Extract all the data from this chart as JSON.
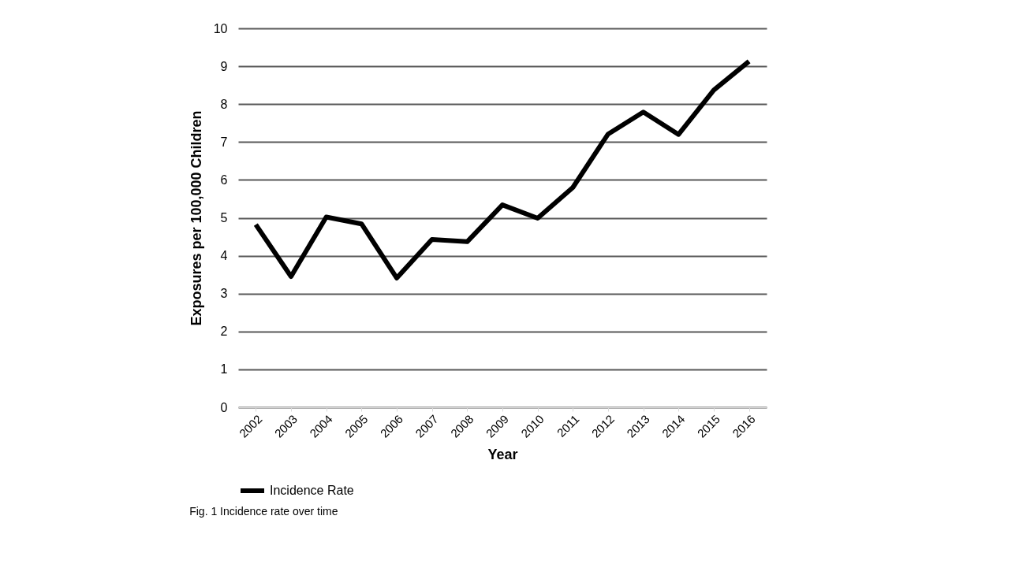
{
  "chart_data": {
    "type": "line",
    "xlabel": "Year",
    "ylabel": "Exposures per 100,000 Children",
    "categories": [
      "2002",
      "2003",
      "2004",
      "2005",
      "2006",
      "2007",
      "2008",
      "2009",
      "2010",
      "2011",
      "2012",
      "2013",
      "2014",
      "2015",
      "2016"
    ],
    "series": [
      {
        "name": "Incidence Rate",
        "color": "#000000",
        "values": [
          4.82,
          3.45,
          5.02,
          4.84,
          3.41,
          4.43,
          4.37,
          5.34,
          4.99,
          5.8,
          7.21,
          7.79,
          7.2,
          8.37,
          9.13
        ]
      }
    ],
    "ylim": [
      0,
      10
    ],
    "yticks": [
      0,
      1,
      2,
      3,
      4,
      5,
      6,
      7,
      8,
      9,
      10
    ],
    "grid": "y",
    "legend": "bottom",
    "marker": "none",
    "line_style": "solid",
    "annotations": [
      "Fig. 1 Incidence rate over time"
    ]
  }
}
